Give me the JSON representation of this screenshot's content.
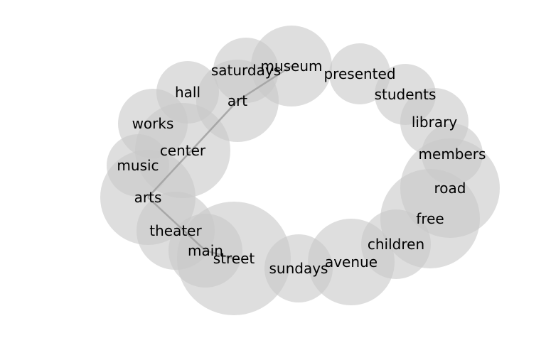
{
  "diagram": {
    "bubble_color": "#c8c8c8",
    "edge_color": "#a0a0a0",
    "nodes": [
      {
        "id": "hall",
        "label": "hall"
      },
      {
        "id": "saturdays",
        "label": "saturdays"
      },
      {
        "id": "museum",
        "label": "museum"
      },
      {
        "id": "presented",
        "label": "presented"
      },
      {
        "id": "students",
        "label": "students"
      },
      {
        "id": "art",
        "label": "art"
      },
      {
        "id": "works",
        "label": "works"
      },
      {
        "id": "library",
        "label": "library"
      },
      {
        "id": "center",
        "label": "center"
      },
      {
        "id": "members",
        "label": "members"
      },
      {
        "id": "music",
        "label": "music"
      },
      {
        "id": "road",
        "label": "road"
      },
      {
        "id": "arts",
        "label": "arts"
      },
      {
        "id": "free",
        "label": "free"
      },
      {
        "id": "theater",
        "label": "theater"
      },
      {
        "id": "children",
        "label": "children"
      },
      {
        "id": "main",
        "label": "main"
      },
      {
        "id": "street",
        "label": "street"
      },
      {
        "id": "avenue",
        "label": "avenue"
      },
      {
        "id": "sundays",
        "label": "sundays"
      }
    ],
    "edges": [
      {
        "from": "museum",
        "to": "art"
      },
      {
        "from": "art",
        "to": "arts"
      },
      {
        "from": "arts",
        "to": "main"
      },
      {
        "from": "main",
        "to": "street"
      }
    ]
  }
}
